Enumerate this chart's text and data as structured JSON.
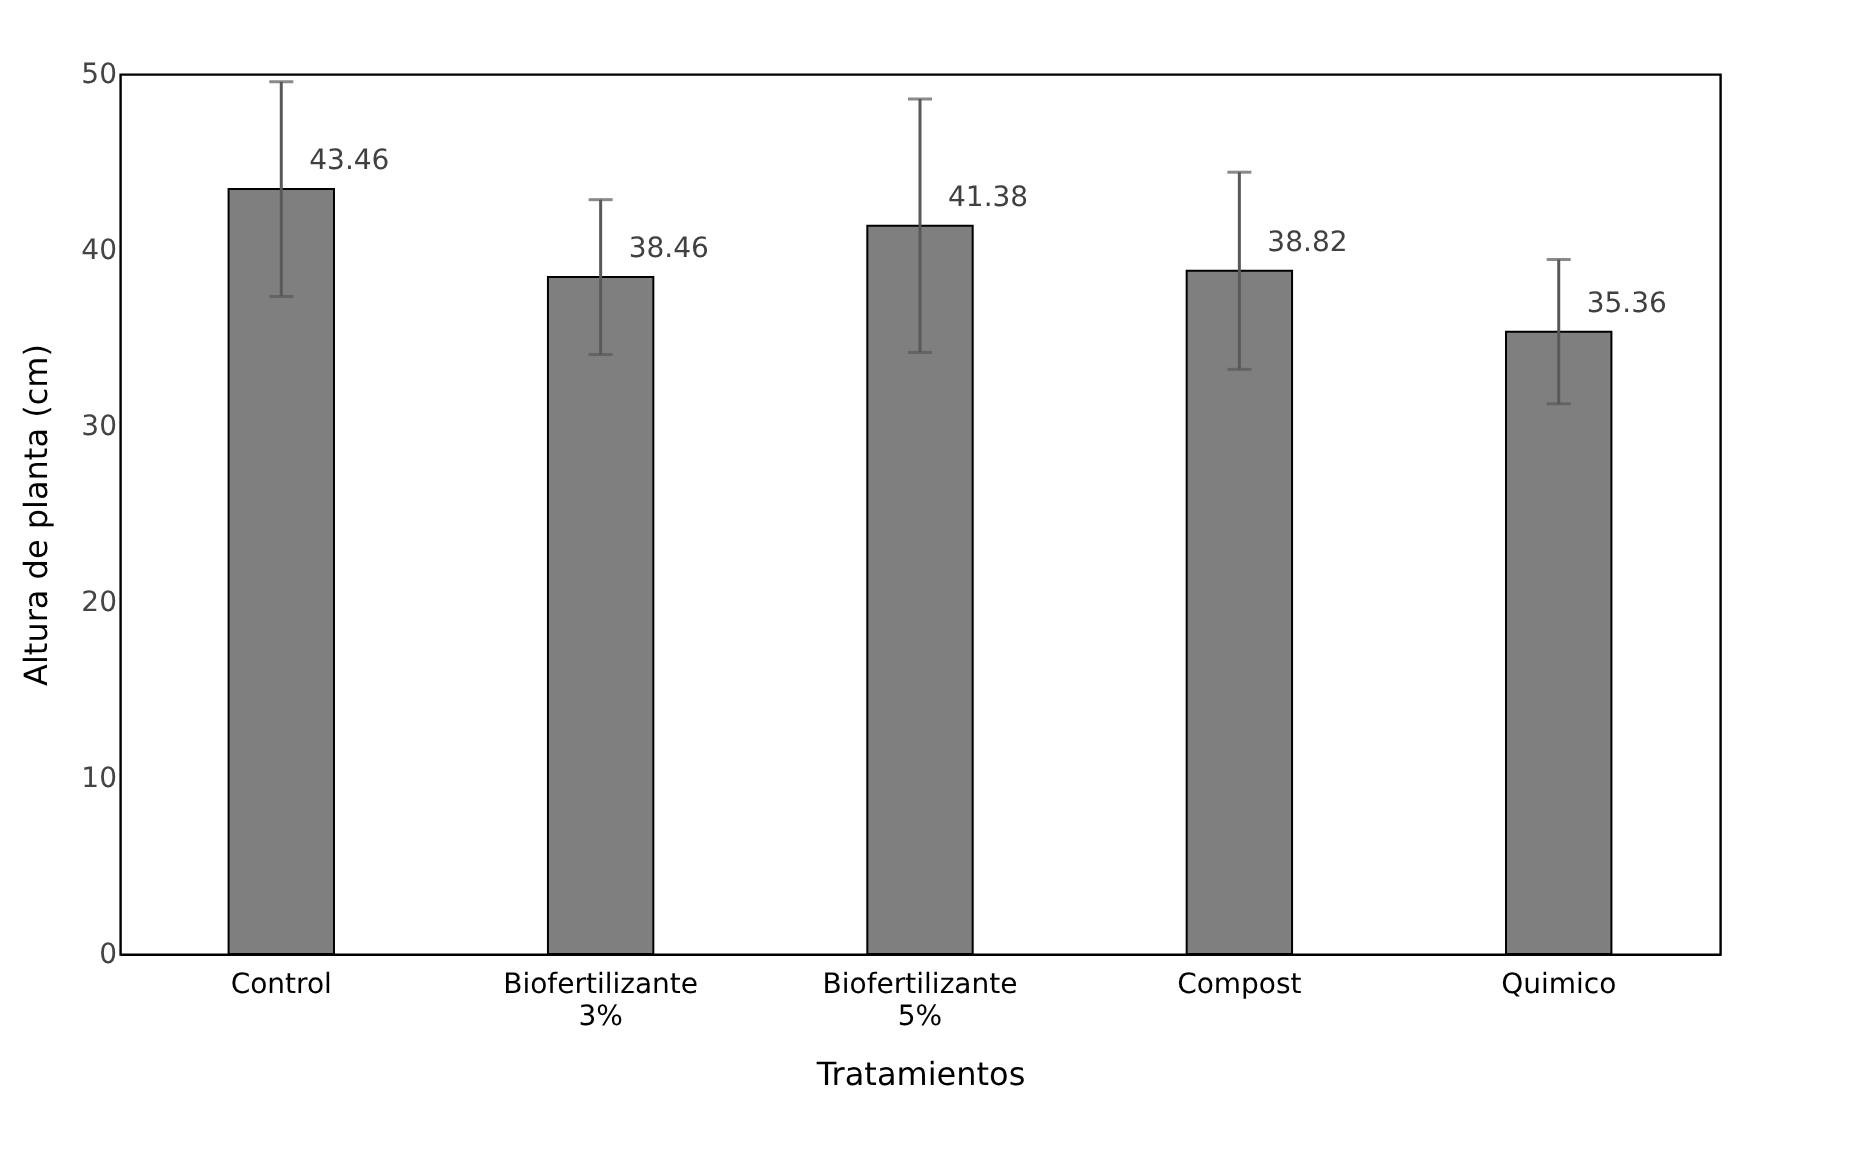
{
  "chart_data": {
    "type": "bar",
    "xlabel": "Tratamientos",
    "ylabel": "Altura de planta (cm)",
    "categories": [
      "Control",
      "Biofertilizante 3%",
      "Biofertilizante 5%",
      "Compost",
      "Quimico"
    ],
    "values": [
      43.46,
      38.46,
      41.38,
      38.82,
      35.36
    ],
    "errors": [
      6.1,
      4.4,
      7.2,
      5.6,
      4.1
    ],
    "color": "#7f7f7f",
    "ylim": [
      0,
      50
    ],
    "yticks": [
      0,
      10,
      20,
      30,
      40,
      50
    ],
    "grid": false,
    "data_labels": true
  }
}
